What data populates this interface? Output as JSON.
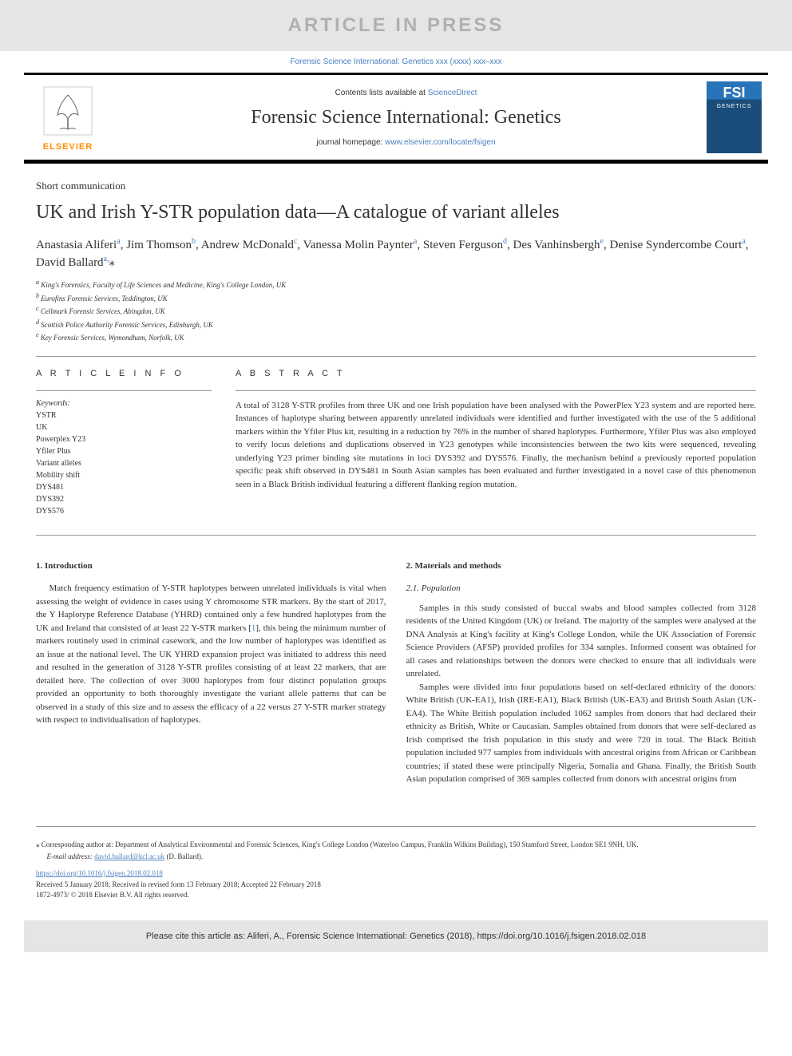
{
  "banner": {
    "text": "ARTICLE IN PRESS",
    "background_color": "#e5e5e5",
    "text_color": "#b0b0b0",
    "fontsize": 24
  },
  "journal_ref_line": "Forensic Science International: Genetics xxx (xxxx) xxx–xxx",
  "header": {
    "contents_prefix": "Contents lists available at ",
    "contents_link": "ScienceDirect",
    "journal_title": "Forensic Science International: Genetics",
    "homepage_prefix": "journal homepage: ",
    "homepage_url": "www.elsevier.com/locate/fsigen",
    "elsevier_label": "ELSEVIER",
    "cover": {
      "fsi": "FSI",
      "genetics": "GENETICS",
      "top_color": "#2874b8",
      "bottom_color": "#1a4d7a"
    }
  },
  "article": {
    "type": "Short communication",
    "title": "UK and Irish Y-STR population data—A catalogue of variant alleles",
    "authors_html": "Anastasia Aliferi<sup>a</sup>, Jim Thomson<sup>b</sup>, Andrew McDonald<sup>c</sup>, Vanessa Molin Paynter<sup>a</sup>, Steven Ferguson<sup>d</sup>, Des Vanhinsbergh<sup>e</sup>, Denise Syndercombe Court<sup>a</sup>, David Ballard<sup>a,</sup>⁎",
    "affiliations": [
      {
        "sup": "a",
        "text": "King's Forensics, Faculty of Life Sciences and Medicine, King's College London, UK"
      },
      {
        "sup": "b",
        "text": "Eurofins Forensic Services, Teddington, UK"
      },
      {
        "sup": "c",
        "text": "Cellmark Forensic Services, Abingdon, UK"
      },
      {
        "sup": "d",
        "text": "Scottish Police Authority Forensic Services, Edinburgh, UK"
      },
      {
        "sup": "e",
        "text": "Key Forensic Services, Wymondham, Norfolk, UK"
      }
    ]
  },
  "article_info": {
    "heading": "A R T I C L E  I N F O",
    "keywords_label": "Keywords:",
    "keywords": [
      "YSTR",
      "UK",
      "Powerplex Y23",
      "Yfiler Plus",
      "Variant alleles",
      "Mobility shift",
      "DYS481",
      "DYS392",
      "DYS576"
    ]
  },
  "abstract": {
    "heading": "A B S T R A C T",
    "text": "A total of 3128 Y-STR profiles from three UK and one Irish population have been analysed with the PowerPlex Y23 system and are reported here. Instances of haplotype sharing between apparently unrelated individuals were identified and further investigated with the use of the 5 additional markers within the Yfiler Plus kit, resulting in a reduction by 76% in the number of shared haplotypes. Furthermore, Yfiler Plus was also employed to verify locus deletions and duplications observed in Y23 genotypes while inconsistencies between the two kits were sequenced, revealing underlying Y23 primer binding site mutations in loci DYS392 and DYS576. Finally, the mechanism behind a previously reported population specific peak shift observed in DYS481 in South Asian samples has been evaluated and further investigated in a novel case of this phenomenon seen in a Black British individual featuring a different flanking region mutation."
  },
  "sections": {
    "intro_heading": "1. Introduction",
    "intro_text": "Match frequency estimation of Y-STR haplotypes between unrelated individuals is vital when assessing the weight of evidence in cases using Y chromosome STR markers. By the start of 2017, the Y Haplotype Reference Database (YHRD) contained only a few hundred haplotypes from the UK and Ireland that consisted of at least 22 Y-STR markers [<span class=\"ref-link\">1</span>], this being the minimum number of markers routinely used in criminal casework, and the low number of haplotypes was identified as an issue at the national level. The UK YHRD expansion project was initiated to address this need and resulted in the generation of 3128 Y-STR profiles consisting of at least 22 markers, that are detailed here. The collection of over 3000 haplotypes from four distinct population groups provided an opportunity to both thoroughly investigate the variant allele patterns that can be observed in a study of this size and to assess the efficacy of a 22 versus 27 Y-STR marker strategy with respect to individualisation of haplotypes.",
    "methods_heading": "2. Materials and methods",
    "population_heading": "2.1. Population",
    "population_p1": "Samples in this study consisted of buccal swabs and blood samples collected from 3128 residents of the United Kingdom (UK) or Ireland. The majority of the samples were analysed at the DNA Analysis at King's facility at King's College London, while the UK Association of Forensic Science Providers (AFSP) provided profiles for 334 samples. Informed consent was obtained for all cases and relationships between the donors were checked to ensure that all individuals were unrelated.",
    "population_p2": "Samples were divided into four populations based on self-declared ethnicity of the donors: White British (UK-EA1), Irish (IRE-EA1), Black British (UK-EA3) and British South Asian (UK-EA4). The White British population included 1062 samples from donors that had declared their ethnicity as British, White or Caucasian. Samples obtained from donors that were self-declared as Irish comprised the Irish population in this study and were 720 in total. The Black British population included 977 samples from individuals with ancestral origins from African or Caribbean countries; if stated these were principally Nigeria, Somalia and Ghana. Finally, the British South Asian population comprised of 369 samples collected from donors with ancestral origins from"
  },
  "footer": {
    "corresponding": "⁎ Corresponding author at: Department of Analytical Environmental and Forensic Sciences, King's College London (Waterloo Campus, Franklin Wilkins Building), 150 Stamford Street, London SE1 9NH, UK.",
    "email_label": "E-mail address: ",
    "email": "david.ballard@kcl.ac.uk",
    "email_person": " (D. Ballard).",
    "doi": "https://doi.org/10.1016/j.fsigen.2018.02.018",
    "received": "Received 5 January 2018; Received in revised form 13 February 2018; Accepted 22 February 2018",
    "copyright": "1872-4973/ © 2018 Elsevier B.V. All rights reserved."
  },
  "cite_box": "Please cite this article as: Aliferi, A., Forensic Science International: Genetics (2018), https://doi.org/10.1016/j.fsigen.2018.02.018",
  "colors": {
    "link": "#4a7fbf",
    "banner_bg": "#e5e5e5",
    "elsevier_orange": "#ff8c00",
    "text": "#333333"
  }
}
